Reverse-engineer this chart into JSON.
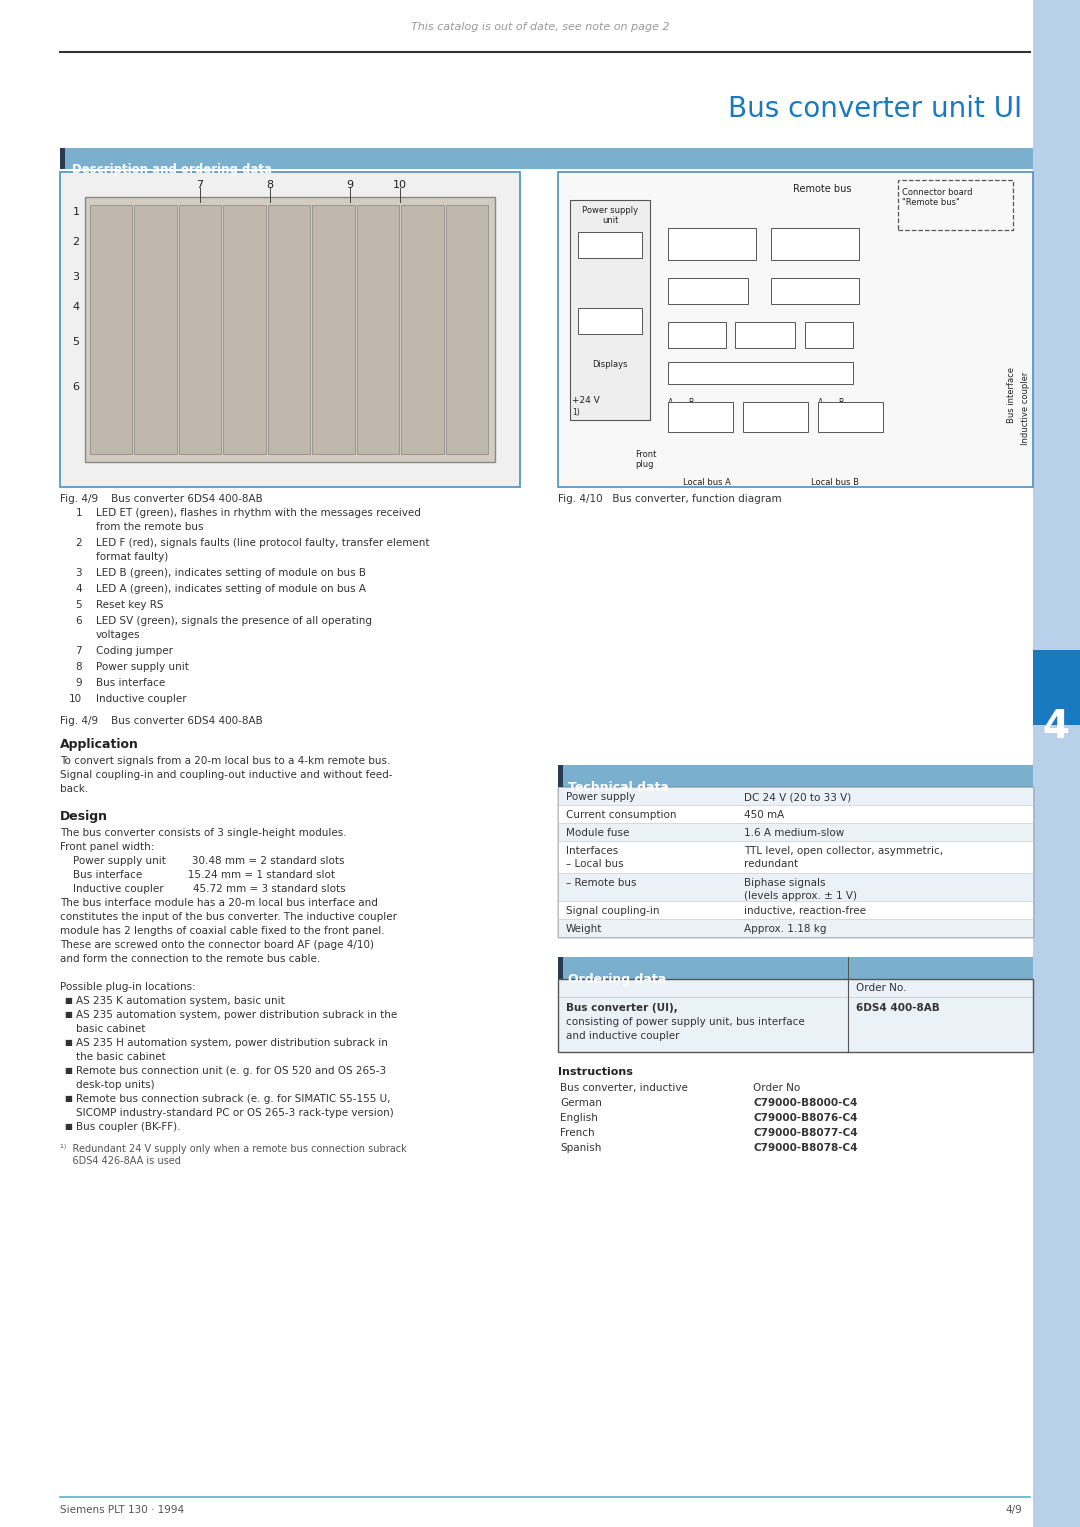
{
  "page_title": "Bus converter unit UI",
  "top_notice": "This catalog is out of date, see note on page 2",
  "footer_left": "Siemens PLT 130 · 1994",
  "footer_right": "4/9",
  "section_title": "Description and ordering data",
  "sidebar_color": "#b8d0e8",
  "section_header_color": "#7ab0ce",
  "section_header_dark": "#2c4a6e",
  "title_color": "#1a7abf",
  "bg_color": "#ffffff",
  "border_color": "#4a90c4",
  "fig_caption_left": "Fig. 4/9    Bus converter 6DS4 400-8AB",
  "fig_caption_right": "Fig. 4/10   Bus converter, function diagram",
  "numbered_items": [
    [
      "1",
      "LED ET (green), flashes in rhythm with the messages received",
      "from the remote bus"
    ],
    [
      "2",
      "LED F (red), signals faults (line protocol faulty, transfer element",
      "format faulty)"
    ],
    [
      "3",
      "LED B (green), indicates setting of module on bus B",
      ""
    ],
    [
      "4",
      "LED A (green), indicates setting of module on bus A",
      ""
    ],
    [
      "5",
      "Reset key RS",
      ""
    ],
    [
      "6",
      "LED SV (green), signals the presence of all operating",
      "voltages"
    ],
    [
      "7",
      "Coding jumper",
      ""
    ],
    [
      "8",
      "Power supply unit",
      ""
    ],
    [
      "9",
      "Bus interface",
      ""
    ],
    [
      "10",
      "Inductive coupler",
      ""
    ]
  ],
  "application_title": "Application",
  "application_lines": [
    "To convert signals from a 20-m local bus to a 4-km remote bus.",
    "Signal coupling-in and coupling-out inductive and without feed-",
    "back."
  ],
  "design_title": "Design",
  "design_lines": [
    "The bus converter consists of 3 single-height modules.",
    "Front panel width:",
    "    Power supply unit        30.48 mm = 2 standard slots",
    "    Bus interface              15.24 mm = 1 standard slot",
    "    Inductive coupler         45.72 mm = 3 standard slots",
    "The bus interface module has a 20-m local bus interface and",
    "constitutes the input of the bus converter. The inductive coupler",
    "module has 2 lengths of coaxial cable fixed to the front panel.",
    "These are screwed onto the connector board AF (page 4/10)",
    "and form the connection to the remote bus cable.",
    "",
    "Possible plug-in locations:"
  ],
  "plug_in_locations": [
    [
      "AS 235 K automation system, basic unit",
      ""
    ],
    [
      "AS 235 automation system, power distribution subrack in the",
      "basic cabinet"
    ],
    [
      "AS 235 H automation system, power distribution subrack in",
      "the basic cabinet"
    ],
    [
      "Remote bus connection unit (e. g. for OS 520 and OS 265-3",
      "desk-top units)"
    ],
    [
      "Remote bus connection subrack (e. g. for SIMATIC S5-155 U,",
      "SICOMP industry-standard PC or OS 265-3 rack-type version)"
    ],
    [
      "Bus coupler (BK-FF).",
      ""
    ]
  ],
  "footnote_lines": [
    "¹⁾  Redundant 24 V supply only when a remote bus connection subrack",
    "    6DS4 426-8AA is used"
  ],
  "tech_data_title": "Technical data",
  "tech_data": [
    [
      "Power supply",
      [
        "DC 24 V (20 to 33 V)"
      ]
    ],
    [
      "Current consumption",
      [
        "450 mA"
      ]
    ],
    [
      "Module fuse",
      [
        "1.6 A medium-slow"
      ]
    ],
    [
      "Interfaces\n– Local bus",
      [
        "TTL level, open collector, asymmetric,",
        "redundant"
      ]
    ],
    [
      "– Remote bus",
      [
        "Biphase signals",
        "(levels approx. ± 1 V)"
      ]
    ],
    [
      "Signal coupling-in",
      [
        "inductive, reaction-free"
      ]
    ],
    [
      "Weight",
      [
        "Approx. 1.18 kg"
      ]
    ]
  ],
  "ordering_title": "Ordering data",
  "ordering_header": "Order No.",
  "ordering_item_bold": "Bus converter (UI),",
  "ordering_item_desc": [
    "consisting of power supply unit, bus interface",
    "and inductive coupler"
  ],
  "ordering_item_order": "6DS4 400-8AB",
  "instructions_title": "Instructions",
  "instructions_items": [
    [
      "Bus converter, inductive",
      "Order No",
      false
    ],
    [
      "   German",
      "C79000-B8000-C4",
      true
    ],
    [
      "   English",
      "C79000-B8076-C4",
      true
    ],
    [
      "   French",
      "C79000-B8077-C4",
      true
    ],
    [
      "   Spanish",
      "C79000-B8078-C4",
      true
    ]
  ],
  "chapter_number": "4",
  "chapter_color": "#1a7abf"
}
